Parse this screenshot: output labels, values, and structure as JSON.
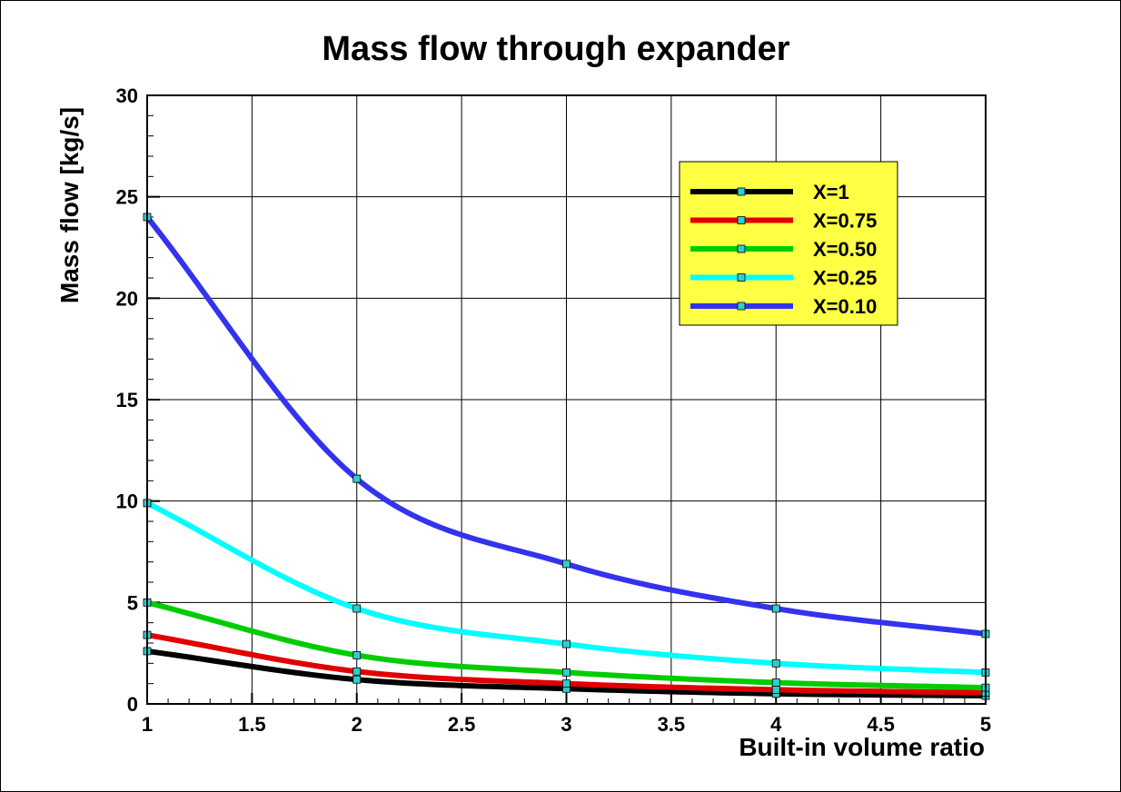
{
  "chart_data": {
    "type": "line",
    "title": "Mass flow through expander",
    "xlabel": "Built-in volume ratio",
    "ylabel": "Mass flow [kg/s]",
    "xlim": [
      1,
      5
    ],
    "ylim": [
      0,
      30
    ],
    "x_ticks": [
      "1",
      "1.5",
      "2",
      "2.5",
      "3",
      "3.5",
      "4",
      "4.5",
      "5"
    ],
    "y_ticks": [
      "0",
      "5",
      "10",
      "15",
      "20",
      "25",
      "30"
    ],
    "grid": true,
    "legend_position": "top-right",
    "background": "#ffffff",
    "legend_background": "#ffff44",
    "marker_color": "#33cccc",
    "marker_x": [
      1,
      2,
      3,
      4,
      5
    ],
    "series": [
      {
        "name": "X=1",
        "color": "#000000",
        "values": [
          2.6,
          1.2,
          0.75,
          0.5,
          0.4
        ]
      },
      {
        "name": "X=0.75",
        "color": "#e00000",
        "values": [
          3.4,
          1.6,
          1.0,
          0.7,
          0.55
        ]
      },
      {
        "name": "X=0.50",
        "color": "#00cc00",
        "values": [
          5.0,
          2.4,
          1.55,
          1.05,
          0.8
        ]
      },
      {
        "name": "X=0.25",
        "color": "#00ffff",
        "values": [
          9.9,
          4.7,
          2.95,
          2.0,
          1.55
        ]
      },
      {
        "name": "X=0.10",
        "color": "#3333ee",
        "values": [
          24.0,
          11.1,
          6.9,
          4.7,
          3.45
        ]
      }
    ]
  }
}
